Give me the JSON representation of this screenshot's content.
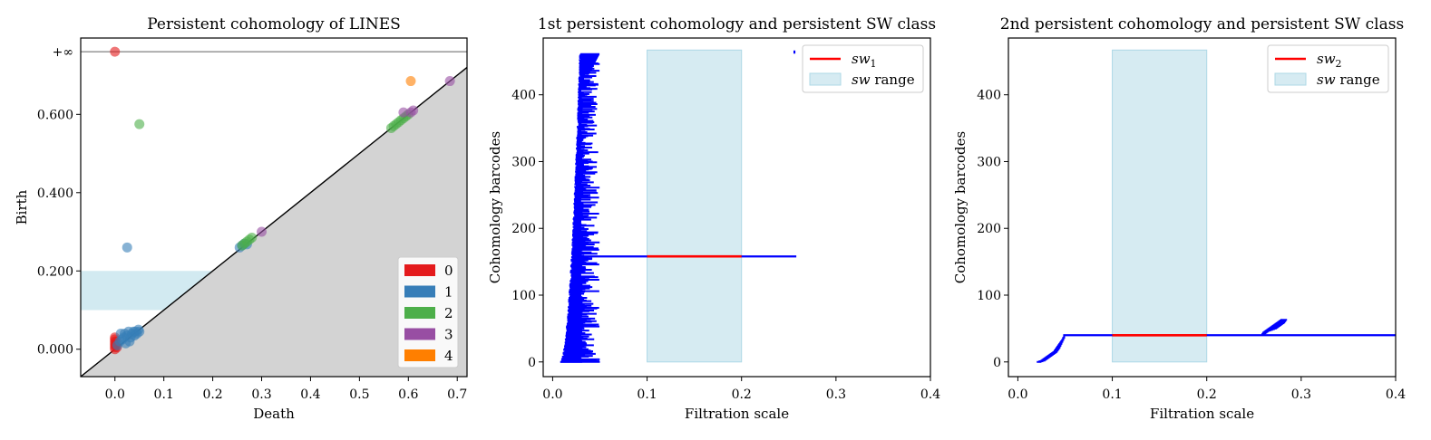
{
  "chart_data": [
    {
      "type": "scatter",
      "title": "Persistent cohomology of LINES",
      "xlabel": "Death",
      "ylabel": "Birth",
      "xlim": [
        -0.07,
        0.72
      ],
      "ylim": [
        -0.07,
        0.795
      ],
      "x_ticks": [
        0.0,
        0.1,
        0.2,
        0.3,
        0.4,
        0.5,
        0.6,
        0.7
      ],
      "x_tick_labels": [
        "0.0",
        "0.1",
        "0.2",
        "0.3",
        "0.4",
        "0.5",
        "0.6",
        "0.7"
      ],
      "y_ticks": [
        0.0,
        0.2,
        0.4,
        0.6
      ],
      "y_tick_labels": [
        "0.000",
        "0.200",
        "0.400",
        "0.600"
      ],
      "infinity_value": 0.76,
      "infinity_label": "+∞",
      "sw_band": {
        "y_from": 0.1,
        "y_to": 0.2
      },
      "legend": {
        "position": "lower-right",
        "entries": [
          "0",
          "1",
          "2",
          "3",
          "4"
        ]
      },
      "colors": {
        "0": "#e41a1c",
        "1": "#377eb8",
        "2": "#4daf4a",
        "3": "#984ea3",
        "4": "#ff7f00",
        "band": "#add8e6",
        "shade": "#d3d3d3",
        "inf_line": "#808080"
      },
      "series": [
        {
          "name": "0",
          "points": [
            [
              0.0,
              0.0
            ],
            [
              0.0,
              0.005
            ],
            [
              0.0,
              0.01
            ],
            [
              0.0,
              0.015
            ],
            [
              0.0,
              0.02
            ],
            [
              0.0,
              0.025
            ],
            [
              0.0,
              0.03
            ],
            [
              0.002,
              0.01
            ],
            [
              0.003,
              0.02
            ],
            [
              0.004,
              0.005
            ],
            [
              0.0,
              0.76
            ]
          ]
        },
        {
          "name": "1",
          "points": [
            [
              0.005,
              0.01
            ],
            [
              0.01,
              0.02
            ],
            [
              0.012,
              0.04
            ],
            [
              0.015,
              0.025
            ],
            [
              0.018,
              0.03
            ],
            [
              0.02,
              0.04
            ],
            [
              0.022,
              0.015
            ],
            [
              0.025,
              0.035
            ],
            [
              0.028,
              0.045
            ],
            [
              0.03,
              0.02
            ],
            [
              0.032,
              0.03
            ],
            [
              0.035,
              0.04
            ],
            [
              0.038,
              0.045
            ],
            [
              0.04,
              0.035
            ],
            [
              0.042,
              0.045
            ],
            [
              0.045,
              0.04
            ],
            [
              0.048,
              0.05
            ],
            [
              0.05,
              0.045
            ],
            [
              0.025,
              0.26
            ],
            [
              0.255,
              0.26
            ],
            [
              0.26,
              0.265
            ],
            [
              0.265,
              0.27
            ],
            [
              0.27,
              0.268
            ]
          ]
        },
        {
          "name": "2",
          "points": [
            [
              0.05,
              0.575
            ],
            [
              0.565,
              0.565
            ],
            [
              0.57,
              0.57
            ],
            [
              0.575,
              0.575
            ],
            [
              0.58,
              0.58
            ],
            [
              0.585,
              0.585
            ],
            [
              0.59,
              0.59
            ],
            [
              0.595,
              0.595
            ],
            [
              0.6,
              0.6
            ],
            [
              0.26,
              0.265
            ],
            [
              0.265,
              0.27
            ],
            [
              0.27,
              0.275
            ],
            [
              0.275,
              0.28
            ],
            [
              0.28,
              0.285
            ]
          ]
        },
        {
          "name": "3",
          "points": [
            [
              0.59,
              0.605
            ],
            [
              0.605,
              0.605
            ],
            [
              0.61,
              0.61
            ],
            [
              0.3,
              0.3
            ],
            [
              0.685,
              0.685
            ]
          ]
        },
        {
          "name": "4",
          "points": [
            [
              0.605,
              0.685
            ]
          ]
        }
      ]
    },
    {
      "type": "barcode",
      "title": "1st persistent cohomology and persistent SW class",
      "xlabel": "Filtration scale",
      "ylabel": "Cohomology barcodes",
      "xlim": [
        -0.01,
        0.4
      ],
      "ylim": [
        -22,
        485
      ],
      "x_ticks": [
        0.0,
        0.1,
        0.2,
        0.3,
        0.4
      ],
      "x_tick_labels": [
        "0.0",
        "0.1",
        "0.2",
        "0.3",
        "0.4"
      ],
      "y_ticks": [
        0,
        100,
        200,
        300,
        400
      ],
      "y_tick_labels": [
        "0",
        "100",
        "200",
        "300",
        "400"
      ],
      "sw_range": [
        0.1,
        0.2
      ],
      "sw_bar": {
        "index": 158,
        "birth": 0.028,
        "death": 0.258,
        "sw_from": 0.1,
        "sw_to": 0.2
      },
      "extra_bars": [
        {
          "index": 0,
          "birth": 0.008,
          "death": 0.05
        },
        {
          "index": 463,
          "birth": 0.255,
          "death": 0.257
        },
        {
          "index": 465,
          "birth": 0.255,
          "death": 0.257
        }
      ],
      "legend": {
        "position": "upper-right",
        "sw_label_base": "sw",
        "sw_label_sub": "1",
        "range_label_italic": "sw",
        "range_label_rest": " range"
      },
      "colors": {
        "bar": "#0000ff",
        "sw": "#ff0000",
        "band": "#add8e6"
      },
      "bars_generator": {
        "count": 462,
        "birth_start": 0.008,
        "birth_end": 0.029,
        "death_min": 0.03,
        "death_max": 0.05,
        "seed": 7
      }
    },
    {
      "type": "barcode",
      "title": "2nd persistent cohomology and persistent SW class",
      "xlabel": "Filtration scale",
      "ylabel": "Cohomology barcodes",
      "xlim": [
        -0.01,
        0.4
      ],
      "ylim": [
        -22,
        485
      ],
      "x_ticks": [
        0.0,
        0.1,
        0.2,
        0.3,
        0.4
      ],
      "x_tick_labels": [
        "0.0",
        "0.1",
        "0.2",
        "0.3",
        "0.4"
      ],
      "y_ticks": [
        0,
        100,
        200,
        300,
        400
      ],
      "y_tick_labels": [
        "0",
        "100",
        "200",
        "300",
        "400"
      ],
      "sw_range": [
        0.1,
        0.2
      ],
      "sw_bar": {
        "index": 40,
        "birth": 0.048,
        "death": 0.4,
        "sw_from": 0.1,
        "sw_to": 0.2
      },
      "bars": [
        [
          0,
          0.02,
          0.025
        ],
        [
          1,
          0.022,
          0.027
        ],
        [
          2,
          0.024,
          0.029
        ],
        [
          3,
          0.025,
          0.03
        ],
        [
          4,
          0.026,
          0.031
        ],
        [
          5,
          0.027,
          0.032
        ],
        [
          6,
          0.028,
          0.033
        ],
        [
          7,
          0.029,
          0.034
        ],
        [
          8,
          0.03,
          0.035
        ],
        [
          9,
          0.031,
          0.036
        ],
        [
          10,
          0.032,
          0.037
        ],
        [
          11,
          0.033,
          0.038
        ],
        [
          12,
          0.034,
          0.039
        ],
        [
          13,
          0.035,
          0.04
        ],
        [
          14,
          0.036,
          0.041
        ],
        [
          15,
          0.037,
          0.042
        ],
        [
          16,
          0.038,
          0.042
        ],
        [
          17,
          0.038,
          0.043
        ],
        [
          18,
          0.039,
          0.043
        ],
        [
          19,
          0.039,
          0.044
        ],
        [
          20,
          0.04,
          0.044
        ],
        [
          21,
          0.04,
          0.045
        ],
        [
          22,
          0.041,
          0.045
        ],
        [
          23,
          0.041,
          0.045
        ],
        [
          24,
          0.042,
          0.046
        ],
        [
          25,
          0.042,
          0.046
        ],
        [
          26,
          0.043,
          0.046
        ],
        [
          27,
          0.043,
          0.047
        ],
        [
          28,
          0.044,
          0.047
        ],
        [
          29,
          0.044,
          0.047
        ],
        [
          30,
          0.045,
          0.048
        ],
        [
          31,
          0.045,
          0.048
        ],
        [
          32,
          0.046,
          0.048
        ],
        [
          33,
          0.046,
          0.049
        ],
        [
          34,
          0.047,
          0.049
        ],
        [
          35,
          0.047,
          0.049
        ],
        [
          36,
          0.047,
          0.05
        ],
        [
          37,
          0.048,
          0.05
        ],
        [
          38,
          0.048,
          0.05
        ],
        [
          39,
          0.049,
          0.05
        ],
        [
          41,
          0.258,
          0.262
        ],
        [
          42,
          0.258,
          0.262
        ],
        [
          43,
          0.259,
          0.263
        ],
        [
          44,
          0.259,
          0.264
        ],
        [
          45,
          0.26,
          0.265
        ],
        [
          46,
          0.261,
          0.266
        ],
        [
          47,
          0.262,
          0.268
        ],
        [
          48,
          0.263,
          0.27
        ],
        [
          49,
          0.264,
          0.272
        ],
        [
          50,
          0.265,
          0.274
        ],
        [
          51,
          0.266,
          0.275
        ],
        [
          52,
          0.267,
          0.276
        ],
        [
          53,
          0.268,
          0.277
        ],
        [
          54,
          0.269,
          0.278
        ],
        [
          55,
          0.27,
          0.279
        ],
        [
          56,
          0.271,
          0.28
        ],
        [
          57,
          0.272,
          0.281
        ],
        [
          58,
          0.273,
          0.282
        ],
        [
          59,
          0.274,
          0.283
        ],
        [
          60,
          0.275,
          0.283
        ],
        [
          61,
          0.276,
          0.284
        ],
        [
          62,
          0.277,
          0.284
        ],
        [
          63,
          0.278,
          0.285
        ]
      ],
      "legend": {
        "position": "upper-right",
        "sw_label_base": "sw",
        "sw_label_sub": "2",
        "range_label_italic": "sw",
        "range_label_rest": " range"
      },
      "colors": {
        "bar": "#0000ff",
        "sw": "#ff0000",
        "band": "#add8e6"
      }
    }
  ]
}
